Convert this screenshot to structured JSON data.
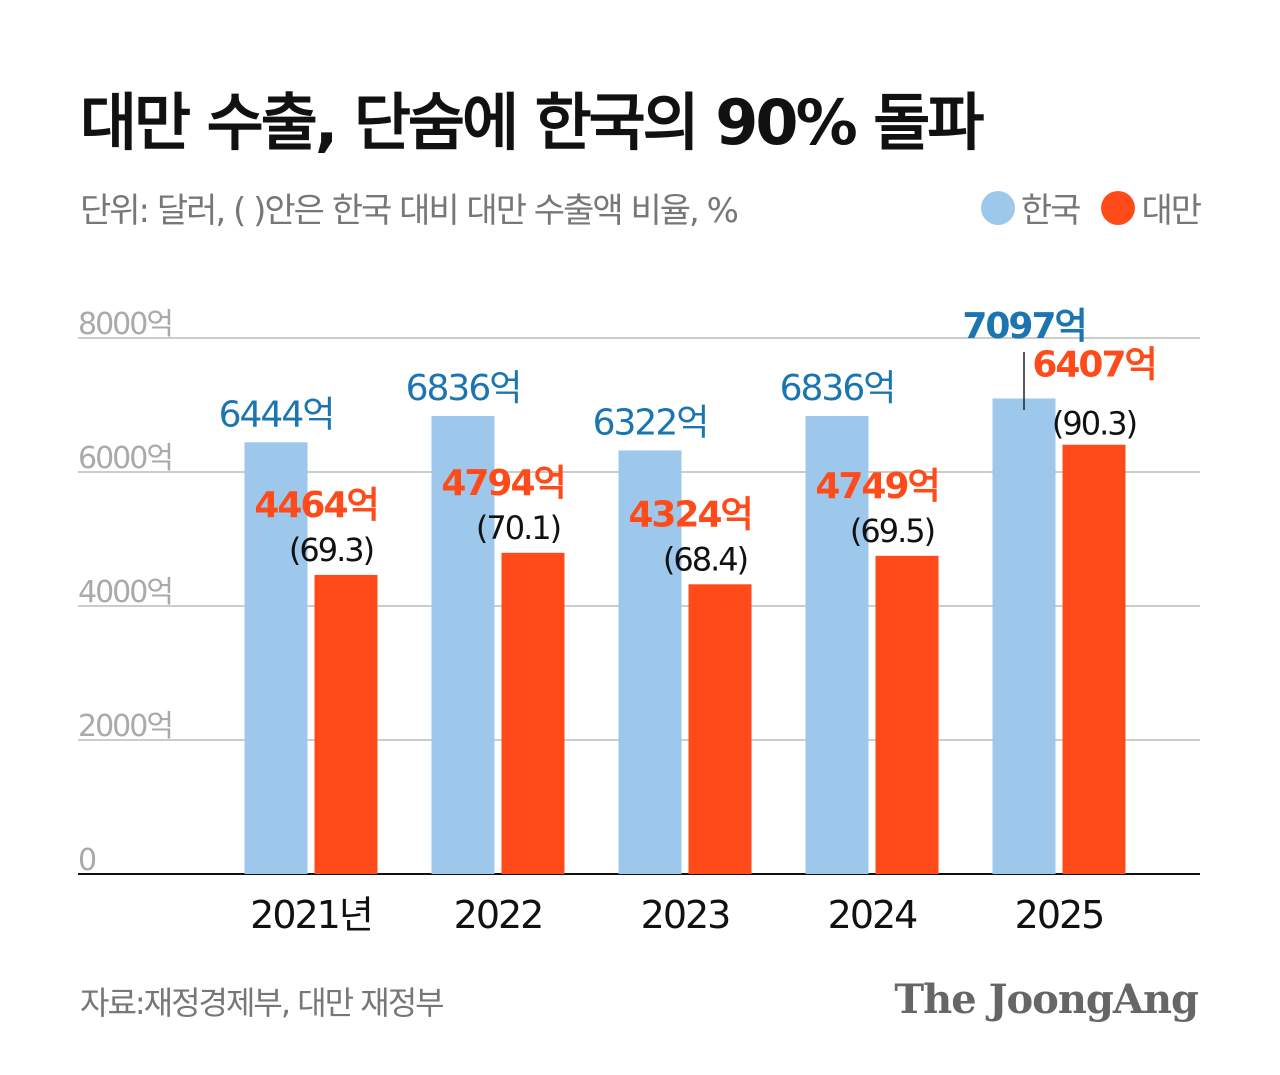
{
  "title": "대만 수출, 단숨에 한국의 90% 돌파",
  "subtitle": "단위: 달러, ( )안은 한국 대비 대만 수출액 비율, %",
  "source": "자료:재정경제부, 대만 재정부",
  "logo_text": "The JoongAng",
  "colors": {
    "korea_bar": "#9DC8EC",
    "taiwan_bar": "#FF4B19",
    "korea_label": "#1A75B0",
    "taiwan_label": "#FF4B19"
  },
  "chart_data": {
    "type": "bar",
    "categories": [
      "2021년",
      "2022",
      "2023",
      "2024",
      "2025"
    ],
    "series": [
      {
        "name": "한국",
        "values": [
          6444,
          6836,
          6322,
          6836,
          7097
        ],
        "labels": [
          "6444억",
          "6836억",
          "6322억",
          "6836억",
          "7097억"
        ]
      },
      {
        "name": "대만",
        "values": [
          4464,
          4794,
          4324,
          4749,
          6407
        ],
        "labels": [
          "4464억",
          "4794억",
          "4324억",
          "4749억",
          "6407억"
        ],
        "ratios": [
          "(69.3)",
          "(70.1)",
          "(68.4)",
          "(69.5)",
          "(90.3)"
        ]
      }
    ],
    "unit": "억 달러",
    "ylim": [
      0,
      8000
    ],
    "yticks": [
      0,
      2000,
      4000,
      6000,
      8000
    ],
    "ytick_labels": [
      "0",
      "2000억",
      "4000억",
      "6000억",
      "8000억"
    ],
    "grid": true,
    "legend": "top-right"
  }
}
